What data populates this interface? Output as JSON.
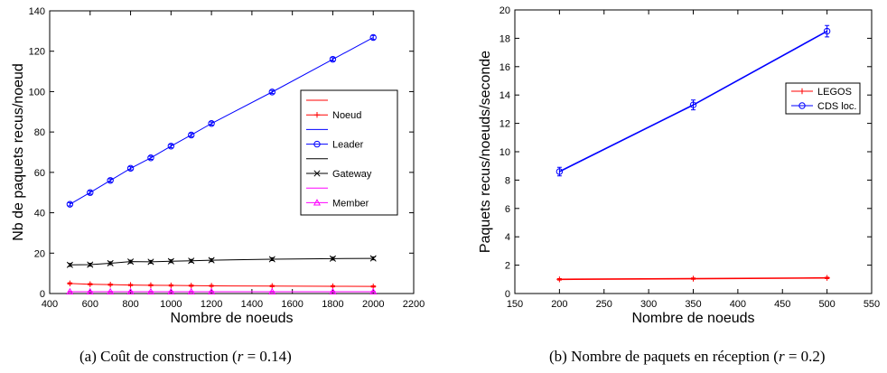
{
  "chart_data": [
    {
      "type": "line",
      "title": "",
      "xlabel": "Nombre de noeuds",
      "ylabel": "Nb de paquets recus/noeud",
      "xlim": [
        400,
        2200
      ],
      "ylim": [
        0,
        140
      ],
      "xticks": [
        400,
        600,
        800,
        1000,
        1200,
        1400,
        1600,
        1800,
        2000,
        2200
      ],
      "yticks": [
        0,
        20,
        40,
        60,
        80,
        100,
        120,
        140
      ],
      "grid": false,
      "legend_position": "right",
      "x": [
        500,
        600,
        700,
        800,
        900,
        1000,
        1100,
        1200,
        1500,
        1800,
        2000
      ],
      "series": [
        {
          "name": "Noeud",
          "color": "#ff0000",
          "marker": "plus",
          "values": [
            5.0,
            4.6,
            4.4,
            4.2,
            4.1,
            4.0,
            3.9,
            3.8,
            3.7,
            3.6,
            3.5
          ],
          "errors": [
            0.3,
            0.3,
            0.3,
            0.3,
            0.3,
            0.3,
            0.3,
            0.3,
            0.3,
            0.3,
            0.3
          ]
        },
        {
          "name": "Leader",
          "color": "#0000ff",
          "marker": "circle",
          "values": [
            44.2,
            50.0,
            56.0,
            62.0,
            67.2,
            73.0,
            78.5,
            84.2,
            99.8,
            116.0,
            126.8
          ],
          "errors": [
            0.8,
            0.8,
            0.8,
            0.8,
            0.8,
            0.8,
            0.8,
            0.8,
            0.8,
            0.8,
            1.0
          ]
        },
        {
          "name": "Gateway",
          "color": "#000000",
          "marker": "x",
          "values": [
            14.2,
            14.3,
            15.0,
            15.8,
            15.7,
            16.0,
            16.2,
            16.5,
            17.0,
            17.3,
            17.4
          ],
          "errors": [
            0.7,
            0.7,
            0.7,
            0.7,
            0.7,
            0.7,
            0.7,
            0.7,
            0.7,
            0.7,
            0.7
          ]
        },
        {
          "name": "Member",
          "color": "#ff00ff",
          "marker": "triangle",
          "values": [
            0.9,
            0.9,
            0.9,
            0.9,
            0.9,
            0.9,
            0.9,
            0.9,
            0.9,
            0.9,
            0.9
          ],
          "errors": [
            0.2,
            0.2,
            0.2,
            0.2,
            0.2,
            0.2,
            0.2,
            0.2,
            0.2,
            0.2,
            0.2
          ]
        }
      ],
      "legend_entries": [
        "",
        "Noeud",
        "",
        "Leader",
        "",
        "Gateway",
        "",
        "Member"
      ],
      "caption_prefix": "(a)  Coût de construction (",
      "caption_var": "r",
      "caption_suffix": " = 0.14)"
    },
    {
      "type": "line",
      "title": "",
      "xlabel": "Nombre de noeuds",
      "ylabel": "Paquets recus/noeuds/seconde",
      "xlim": [
        150,
        550
      ],
      "ylim": [
        0,
        20
      ],
      "xticks": [
        150,
        200,
        250,
        300,
        350,
        400,
        450,
        500,
        550
      ],
      "yticks": [
        0,
        2,
        4,
        6,
        8,
        10,
        12,
        14,
        16,
        18,
        20
      ],
      "grid": false,
      "legend_position": "top-right",
      "x": [
        200,
        350,
        500
      ],
      "series": [
        {
          "name": "LEGOS",
          "color": "#ff0000",
          "marker": "plus",
          "values": [
            1.0,
            1.05,
            1.1
          ],
          "errors": [
            0.05,
            0.05,
            0.05
          ]
        },
        {
          "name": "CDS loc.",
          "color": "#0000ff",
          "marker": "circle",
          "values": [
            8.6,
            13.3,
            18.5
          ],
          "errors": [
            0.3,
            0.35,
            0.4
          ]
        }
      ],
      "caption_prefix": "(b)  Nombre de paquets en réception (",
      "caption_var": "r",
      "caption_suffix": " = 0.2)"
    }
  ]
}
